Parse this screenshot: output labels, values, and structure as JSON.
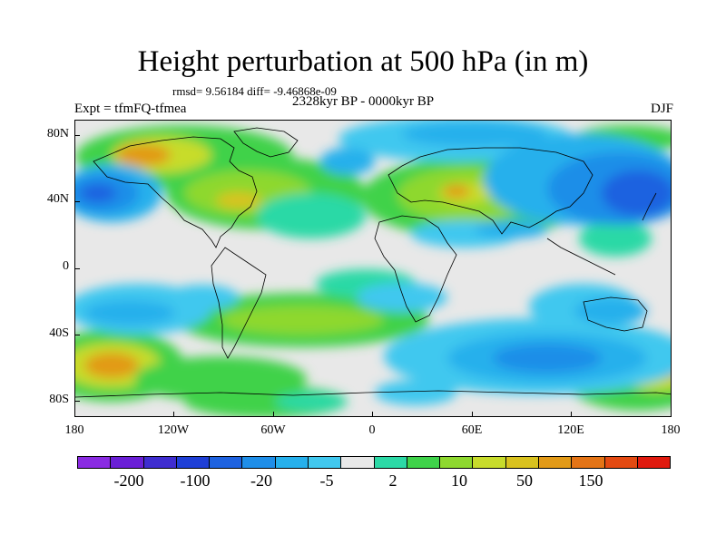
{
  "title": "Height perturbation at 500 hPa (in m)",
  "stats": "rmsd= 9.56184 diff= -9.46868e-09",
  "period": "2328kyr BP - 0000kyr BP",
  "experiment": "Expt = tfmFQ-tfmea",
  "season": "DJF",
  "map": {
    "lat_labels": [
      "80N",
      "40N",
      "0",
      "40S",
      "80S"
    ],
    "lon_labels": [
      "180",
      "120W",
      "60W",
      "0",
      "60E",
      "120E",
      "180"
    ]
  },
  "colorbar": {
    "colors": [
      "#8a2be2",
      "#6a1fd6",
      "#3f2dd0",
      "#1f3fd6",
      "#1e62e0",
      "#1f8ee8",
      "#26b0ec",
      "#41c8ef",
      "#e8e8e8",
      "#2cd9a6",
      "#3fd24a",
      "#8ed82f",
      "#c8dc2c",
      "#d9c21f",
      "#e29a18",
      "#e47416",
      "#e44a12",
      "#e01a0e"
    ],
    "labels": [
      "-200",
      "-100",
      "-20",
      "-5",
      "2",
      "10",
      "50",
      "150"
    ]
  },
  "palette": {
    "map_background": "#e8e8e8",
    "coastline": "#000000"
  }
}
